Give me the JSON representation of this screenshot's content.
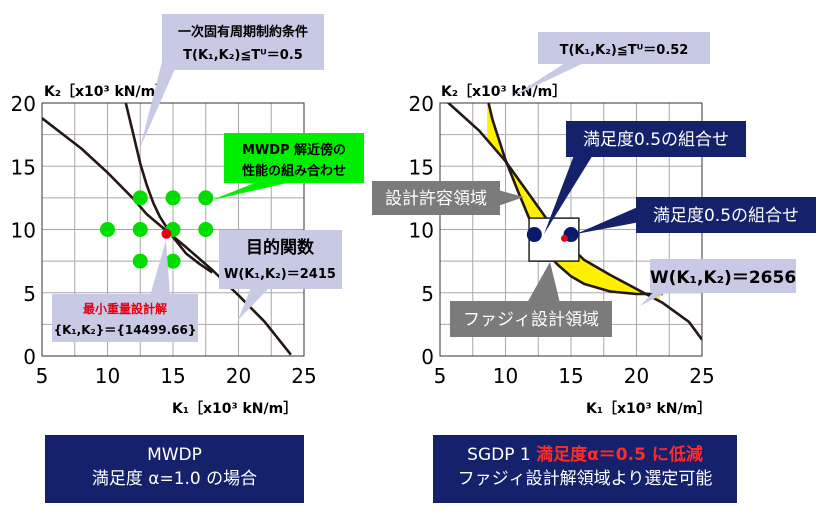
{
  "left_panel": {
    "y_axis_label": "K₂［x10³ kN/m］",
    "x_axis_label": "K₁［x10³ kN/m］",
    "y_ticks": [
      "20",
      "15",
      "10",
      "5",
      "0"
    ],
    "x_ticks": [
      "5",
      "10",
      "15",
      "20",
      "25"
    ],
    "constraint_callout": {
      "line1": "一次固有周期制約条件",
      "line2": "T(K₁,K₂)≦Tᵁ＝0.5"
    },
    "mwdp_callout": {
      "line1": "MWDP 解近傍の",
      "line2": "性能の組み合わせ"
    },
    "objective_callout": {
      "line1": "目的関数",
      "line2": "W(K₁,K₂)＝2415"
    },
    "min_weight_callout": {
      "line1": "最小重量設計解",
      "line2": "{K₁,K₂}＝{14499.66}"
    },
    "footer": {
      "line1": "MWDP",
      "line2": "満足度 α=1.0 の場合"
    }
  },
  "right_panel": {
    "y_axis_label": "K₂［x10³ kN/m］",
    "x_axis_label": "K₁［x10³ kN/m］",
    "y_ticks": [
      "20",
      "15",
      "10",
      "5",
      "0"
    ],
    "x_ticks": [
      "5",
      "10",
      "15",
      "20",
      "25"
    ],
    "constraint_callout": "T(K₁,K₂)≦Tᵁ＝0.52",
    "combo_label_1": "満足度0.5の組合せ",
    "combo_label_2": "満足度0.5の組合せ",
    "allowable_region_label": "設計許容領域",
    "objective_callout": "W(K₁,K₂)＝2656",
    "fuzzy_region_label": "ファジィ設計領域",
    "footer": {
      "line1_prefix": "SGDP 1",
      "line1_highlight": "満足度α＝0.5 に低減",
      "line2": "ファジィ設計解領域より選定可能"
    }
  },
  "colors": {
    "grid": "#a8a8a8",
    "curve": "#231815",
    "mwdp_points": "#00dd00",
    "optimum_point": "#e60012",
    "callout_fill": "#c8c9e4",
    "region_fill": "#fff000",
    "combo_point": "#0a1a6a",
    "footer_fill": "#15216b",
    "highlight_text": "#ff2a2a"
  },
  "chart_data": [
    {
      "type": "line",
      "xlabel": "K₁［x10³ kN/m］",
      "ylabel": "K₂［x10³ kN/m］",
      "xlim": [
        5,
        25
      ],
      "ylim": [
        0,
        20
      ],
      "grid": true,
      "series": [
        {
          "x": [
            5,
            8,
            10,
            12,
            13,
            14.5,
            16,
            18,
            20,
            22,
            24
          ],
          "y": [
            18.8,
            16.4,
            14.5,
            12.4,
            11.2,
            9.9,
            8.6,
            6.8,
            4.8,
            2.7,
            0.1
          ]
        },
        {
          "x": [
            11.4,
            12,
            12.5,
            13,
            13.5,
            14,
            14.5,
            15,
            16,
            17,
            18
          ],
          "y": [
            20,
            17.4,
            15.2,
            13.5,
            12.1,
            11,
            10.2,
            9.4,
            8.1,
            7.3,
            6.6
          ]
        }
      ],
      "mwdp_points": {
        "x": [
          12.5,
          15,
          17.5,
          10,
          12.5,
          15,
          17.5,
          12.5,
          15
        ],
        "y": [
          12.5,
          12.5,
          12.5,
          10,
          10,
          10,
          10,
          7.5,
          7.5
        ]
      },
      "optimum": {
        "x": 14.5,
        "y": 9.66
      }
    },
    {
      "type": "line",
      "xlabel": "K₁［x10³ kN/m］",
      "ylabel": "K₂［x10³ kN/m］",
      "xlim": [
        5,
        25
      ],
      "ylim": [
        0,
        20
      ],
      "grid": true,
      "series": [
        {
          "x": [
            5,
            8,
            10,
            12,
            14,
            16,
            18,
            20,
            22,
            24,
            25
          ],
          "y": [
            20.6,
            17.8,
            15.4,
            12.5,
            9.6,
            7.6,
            6.4,
            5.3,
            4.2,
            2.7,
            1.3
          ]
        },
        {
          "x": [
            8.5,
            9,
            10,
            11,
            12,
            13,
            14,
            15,
            16,
            18,
            20,
            22
          ],
          "y": [
            20.9,
            18.7,
            15.5,
            12.9,
            10.4,
            8.3,
            7.2,
            6.3,
            5.7,
            5.1,
            4.9,
            4.9
          ]
        }
      ],
      "combo_points": {
        "x": [
          12.2,
          15
        ],
        "y": [
          9.6,
          9.6
        ]
      },
      "optimum": {
        "x": 14.5,
        "y": 9.3
      },
      "fuzzy_region": {
        "xlim": [
          11.8,
          15.6
        ],
        "ylim": [
          7.5,
          10.9
        ]
      }
    }
  ]
}
